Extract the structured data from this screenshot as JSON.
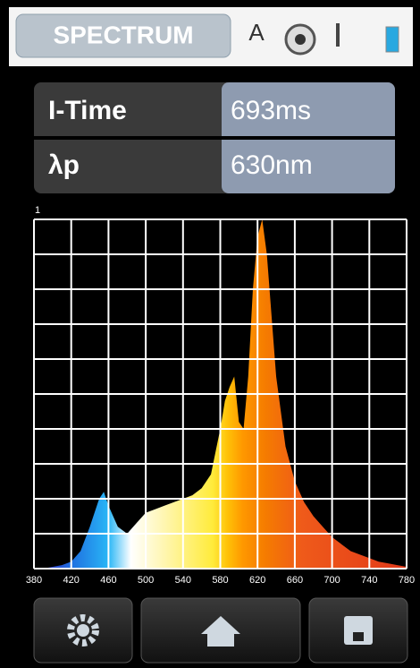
{
  "header": {
    "tab": "SPECTRUM",
    "mode": "A"
  },
  "info": {
    "rows": [
      [
        "I-Time",
        "693ms"
      ],
      [
        "λp",
        "630nm"
      ]
    ]
  },
  "chart_data": {
    "type": "area",
    "x": [
      380,
      390,
      400,
      410,
      420,
      430,
      440,
      450,
      455,
      460,
      470,
      480,
      490,
      500,
      510,
      520,
      530,
      540,
      550,
      560,
      570,
      580,
      585,
      590,
      595,
      600,
      605,
      610,
      615,
      620,
      625,
      630,
      640,
      650,
      660,
      670,
      680,
      690,
      700,
      710,
      720,
      730,
      740,
      750,
      760,
      770,
      780
    ],
    "values": [
      0,
      0,
      0.005,
      0.01,
      0.02,
      0.05,
      0.12,
      0.2,
      0.22,
      0.18,
      0.12,
      0.1,
      0.13,
      0.16,
      0.17,
      0.18,
      0.19,
      0.2,
      0.21,
      0.23,
      0.27,
      0.4,
      0.48,
      0.52,
      0.55,
      0.42,
      0.4,
      0.55,
      0.8,
      0.95,
      1.0,
      0.9,
      0.55,
      0.35,
      0.25,
      0.19,
      0.15,
      0.12,
      0.09,
      0.07,
      0.05,
      0.04,
      0.03,
      0.02,
      0.015,
      0.01,
      0.005
    ],
    "xlim": [
      380,
      780
    ],
    "xticks": [
      380,
      420,
      460,
      500,
      540,
      580,
      620,
      660,
      700,
      740,
      780
    ],
    "ylim": [
      0,
      1
    ],
    "yticks": [
      1
    ],
    "grid": true,
    "y_grid": [
      0,
      0.1,
      0.2,
      0.3,
      0.4,
      0.5,
      0.6,
      0.7,
      0.8,
      0.9,
      1
    ]
  }
}
